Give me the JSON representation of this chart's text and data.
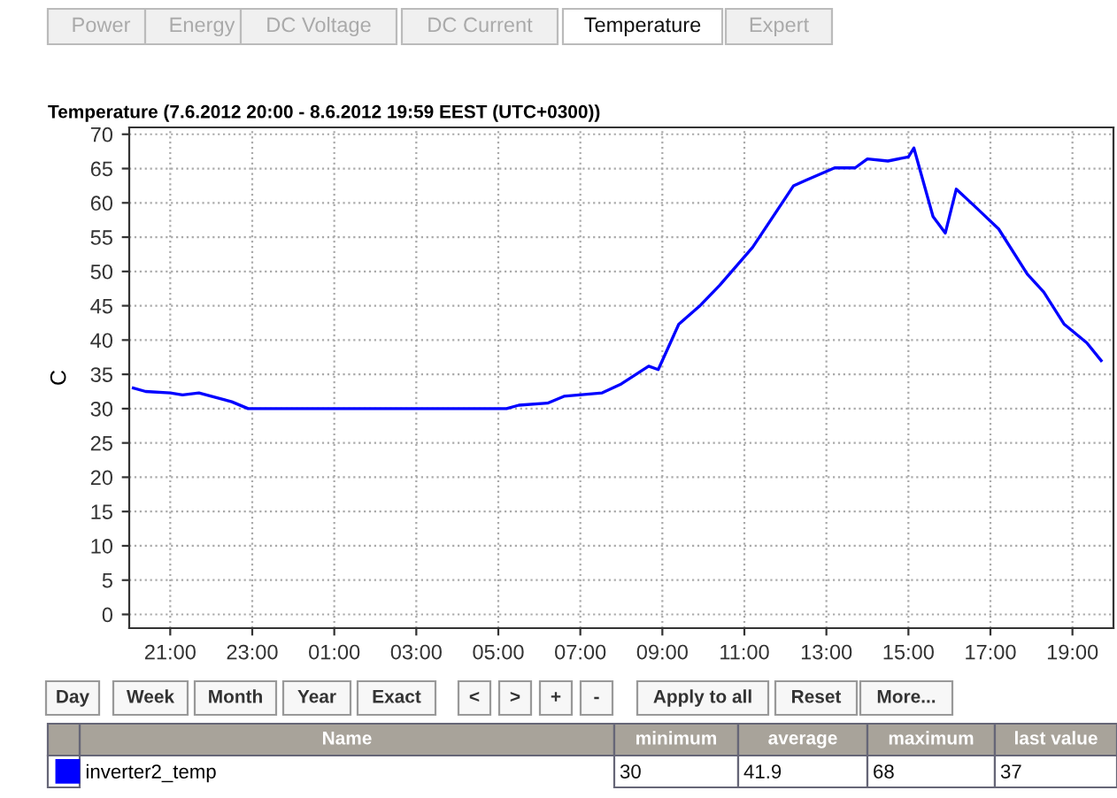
{
  "chart_data": {
    "type": "line",
    "title": "Temperature (7.6.2012 20:00 - 8.6.2012 19:59 EEST (UTC+0300))",
    "ylabel": "C",
    "x": [
      "2012-06-07T20:06",
      "2012-06-07T20:24",
      "2012-06-07T21:00",
      "2012-06-07T21:18",
      "2012-06-07T21:42",
      "2012-06-07T22:00",
      "2012-06-07T22:30",
      "2012-06-07T22:54",
      "2012-06-08T05:12",
      "2012-06-08T05:30",
      "2012-06-08T06:12",
      "2012-06-08T06:36",
      "2012-06-08T07:32",
      "2012-06-08T08:00",
      "2012-06-08T08:40",
      "2012-06-08T08:54",
      "2012-06-08T09:24",
      "2012-06-08T09:54",
      "2012-06-08T10:24",
      "2012-06-08T11:12",
      "2012-06-08T12:12",
      "2012-06-08T12:30",
      "2012-06-08T13:12",
      "2012-06-08T13:42",
      "2012-06-08T14:00",
      "2012-06-08T14:30",
      "2012-06-08T15:00",
      "2012-06-08T15:08",
      "2012-06-08T15:36",
      "2012-06-08T15:54",
      "2012-06-08T16:10",
      "2012-06-08T16:36",
      "2012-06-08T17:12",
      "2012-06-08T17:54",
      "2012-06-08T18:18",
      "2012-06-08T18:48",
      "2012-06-08T19:21",
      "2012-06-08T19:42"
    ],
    "series": [
      {
        "name": "inverter2_temp",
        "color": "#0000ff",
        "values": [
          33,
          32.5,
          32.3,
          32,
          32.3,
          31.8,
          31,
          30,
          30,
          30.5,
          30.8,
          31.8,
          32.3,
          33.6,
          36.2,
          35.7,
          42.3,
          44.9,
          48,
          53.5,
          62.5,
          63.3,
          65.1,
          65.1,
          66.4,
          66.1,
          66.7,
          68,
          58,
          55.6,
          62,
          59.6,
          56.2,
          49.6,
          47,
          42.3,
          39.6,
          37
        ]
      }
    ],
    "xlim": [
      "2012-06-07T20:00",
      "2012-06-08T20:00"
    ],
    "xticks": [
      {
        "value": "2012-06-07T21:00",
        "label": "21:00"
      },
      {
        "value": "2012-06-07T23:00",
        "label": "23:00"
      },
      {
        "value": "2012-06-08T01:00",
        "label": "01:00"
      },
      {
        "value": "2012-06-08T03:00",
        "label": "03:00"
      },
      {
        "value": "2012-06-08T05:00",
        "label": "05:00"
      },
      {
        "value": "2012-06-08T07:00",
        "label": "07:00"
      },
      {
        "value": "2012-06-08T09:00",
        "label": "09:00"
      },
      {
        "value": "2012-06-08T11:00",
        "label": "11:00"
      },
      {
        "value": "2012-06-08T13:00",
        "label": "13:00"
      },
      {
        "value": "2012-06-08T15:00",
        "label": "15:00"
      },
      {
        "value": "2012-06-08T17:00",
        "label": "17:00"
      },
      {
        "value": "2012-06-08T19:00",
        "label": "19:00"
      }
    ],
    "ylim": [
      -2,
      71
    ],
    "yticks": [
      0,
      5,
      10,
      15,
      20,
      25,
      30,
      35,
      40,
      45,
      50,
      55,
      60,
      65,
      70
    ],
    "grid": true,
    "legend": "bottom",
    "marker": "none",
    "line_style": "solid",
    "annotations": [
      "Power",
      "Energy",
      "DC Voltage",
      "DC Current",
      "Temperature",
      "Expert",
      "Day",
      "Week",
      "Month",
      "Year",
      "Exact",
      "<",
      ">",
      "+",
      "-",
      "Apply to all",
      "Reset",
      "More...",
      "Name",
      "minimum",
      "average",
      "maximum",
      "last value",
      "30",
      "41.9",
      "68",
      "37"
    ]
  }
}
